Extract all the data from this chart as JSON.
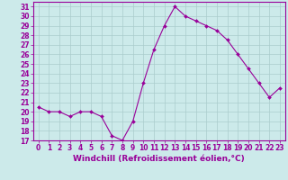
{
  "x": [
    0,
    1,
    2,
    3,
    4,
    5,
    6,
    7,
    8,
    9,
    10,
    11,
    12,
    13,
    14,
    15,
    16,
    17,
    18,
    19,
    20,
    21,
    22,
    23
  ],
  "y": [
    20.5,
    20.0,
    20.0,
    19.5,
    20.0,
    20.0,
    19.5,
    17.5,
    17.0,
    19.0,
    23.0,
    26.5,
    29.0,
    31.0,
    30.0,
    29.5,
    29.0,
    28.5,
    27.5,
    26.0,
    24.5,
    23.0,
    21.5,
    22.5
  ],
  "line_color": "#990099",
  "marker": "D",
  "marker_size": 2.0,
  "bg_color": "#cceaea",
  "grid_color": "#aacccc",
  "xlabel": "Windchill (Refroidissement éolien,°C)",
  "xlabel_color": "#990099",
  "ylim": [
    17,
    31.5
  ],
  "xlim": [
    -0.5,
    23.5
  ],
  "yticks": [
    17,
    18,
    19,
    20,
    21,
    22,
    23,
    24,
    25,
    26,
    27,
    28,
    29,
    30,
    31
  ],
  "xticks": [
    0,
    1,
    2,
    3,
    4,
    5,
    6,
    7,
    8,
    9,
    10,
    11,
    12,
    13,
    14,
    15,
    16,
    17,
    18,
    19,
    20,
    21,
    22,
    23
  ],
  "tick_color": "#990099",
  "tick_fontsize": 5.5,
  "xlabel_fontsize": 6.5,
  "spine_color": "#990099",
  "linewidth": 0.8
}
